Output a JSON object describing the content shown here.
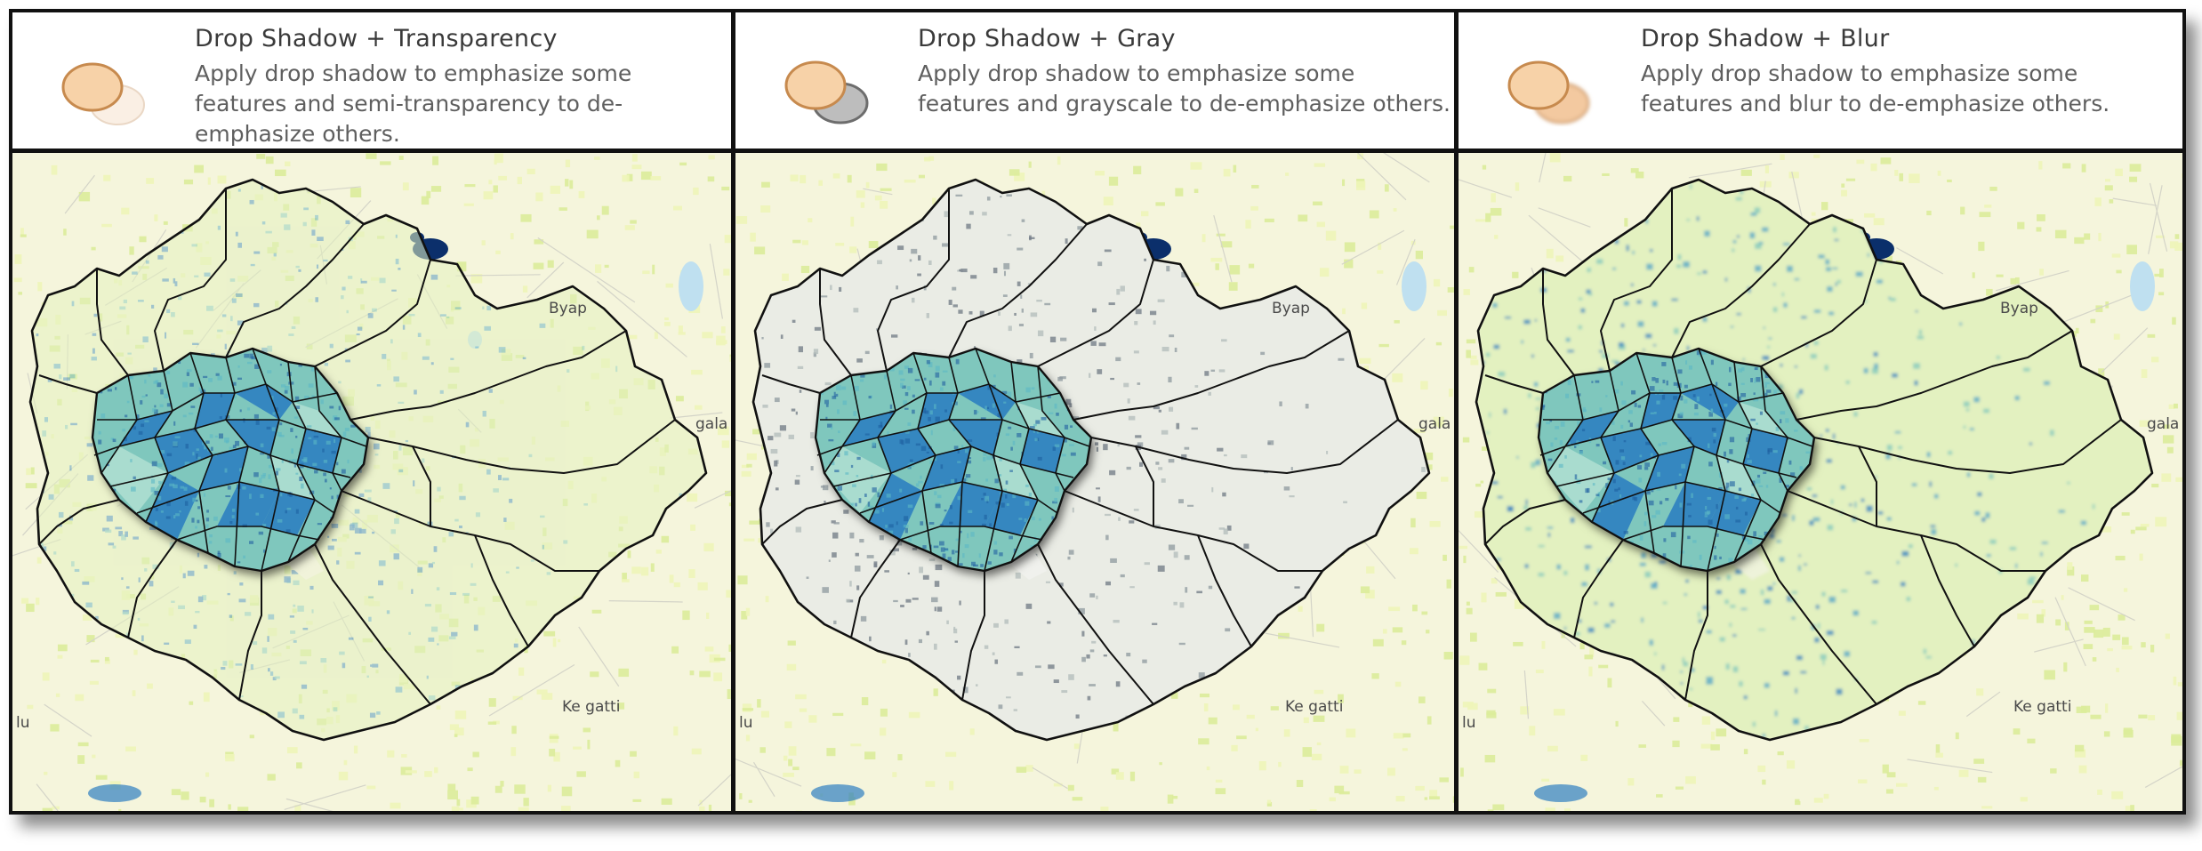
{
  "panels": [
    {
      "title": "Drop Shadow + Transparency",
      "description": "Apply drop shadow to emphasize some features and semi-transparency to de-emphasize others.",
      "style": "transparency"
    },
    {
      "title": "Drop Shadow + Gray",
      "description": "Apply drop shadow to emphasize some features and grayscale to de-emphasize others.",
      "style": "gray"
    },
    {
      "title": "Drop Shadow + Blur",
      "description": "Apply drop shadow to emphasize some features and blur to de-emphasize others.",
      "style": "blur"
    }
  ],
  "map_labels": {
    "byap": "Byap",
    "gala": "gala",
    "kegatti": "Ke gatti",
    "lu": "lu"
  },
  "colors": {
    "base_map": "#f5f5dc",
    "light_fill": "#e3f1c0",
    "mid_fill": "#7fc7bd",
    "dark_fill": "#2f7fc0",
    "deep_blue": "#0b2f6b",
    "boundary": "#111111",
    "swatch_peach": "#f7d2a8",
    "swatch_outline": "#c78a4e"
  }
}
